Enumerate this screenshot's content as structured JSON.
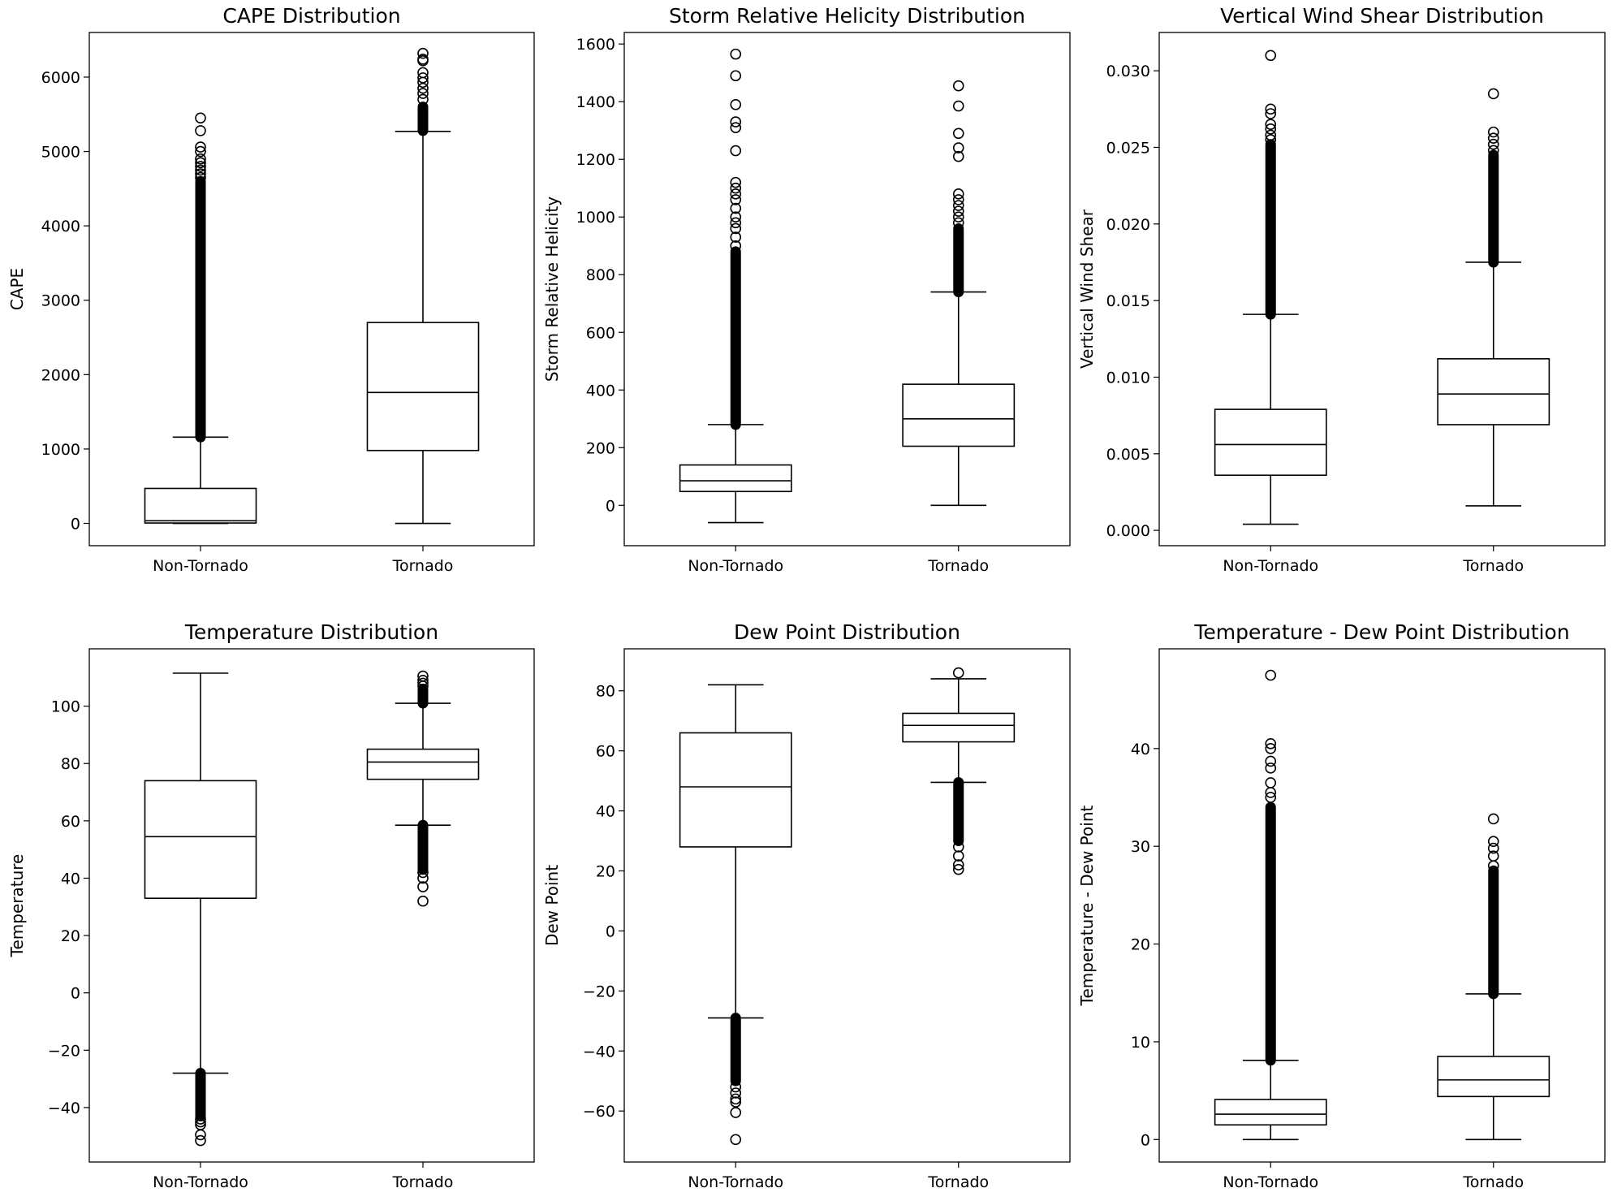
{
  "figure": {
    "background": "#ffffff",
    "line_color": "#000000"
  },
  "chart_data": [
    {
      "type": "boxplot",
      "title": "CAPE Distribution",
      "xlabel": "",
      "ylabel": "CAPE",
      "categories": [
        "Non-Tornado",
        "Tornado"
      ],
      "ylim": [
        -300,
        6600
      ],
      "yticks": [
        0,
        1000,
        2000,
        3000,
        4000,
        5000,
        6000
      ],
      "yticklabels": [
        "0",
        "1000",
        "2000",
        "3000",
        "4000",
        "5000",
        "6000"
      ],
      "boxes": [
        {
          "whislo": 0,
          "q1": 5,
          "med": 35,
          "q3": 470,
          "whishi": 1160,
          "outlier_band_low": [],
          "outlier_band_high": [
            1160,
            4600
          ],
          "fliers": [
            4650,
            4700,
            4750,
            4800,
            4850,
            4900,
            5000,
            5060,
            5280,
            5450
          ]
        },
        {
          "whislo": 0,
          "q1": 980,
          "med": 1760,
          "q3": 2700,
          "whishi": 5270,
          "outlier_band_low": [],
          "outlier_band_high": [
            5280,
            5600
          ],
          "fliers": [
            5700,
            5780,
            5850,
            5930,
            5990,
            6060,
            6220,
            6240,
            6320
          ]
        }
      ]
    },
    {
      "type": "boxplot",
      "title": "Storm Relative Helicity Distribution",
      "xlabel": "",
      "ylabel": "Storm Relative Helicity",
      "categories": [
        "Non-Tornado",
        "Tornado"
      ],
      "ylim": [
        -140,
        1640
      ],
      "yticks": [
        0,
        200,
        400,
        600,
        800,
        1000,
        1200,
        1400,
        1600
      ],
      "yticklabels": [
        "0",
        "200",
        "400",
        "600",
        "800",
        "1000",
        "1200",
        "1400",
        "1600"
      ],
      "boxes": [
        {
          "whislo": -60,
          "q1": 48,
          "med": 85,
          "q3": 140,
          "whishi": 280,
          "outlier_band_low": [],
          "outlier_band_high": [
            280,
            880
          ],
          "fliers": [
            900,
            930,
            960,
            980,
            1000,
            1030,
            1060,
            1080,
            1100,
            1120,
            1230,
            1310,
            1330,
            1390,
            1490,
            1565
          ]
        },
        {
          "whislo": 0,
          "q1": 205,
          "med": 300,
          "q3": 420,
          "whishi": 740,
          "outlier_band_low": [],
          "outlier_band_high": [
            740,
            960
          ],
          "fliers": [
            980,
            1000,
            1020,
            1040,
            1060,
            1080,
            1210,
            1240,
            1290,
            1385,
            1455
          ]
        }
      ]
    },
    {
      "type": "boxplot",
      "title": "Vertical Wind Shear Distribution",
      "xlabel": "",
      "ylabel": "Vertical Wind Shear",
      "categories": [
        "Non-Tornado",
        "Tornado"
      ],
      "ylim": [
        -0.001,
        0.0325
      ],
      "yticks": [
        0,
        0.005,
        0.01,
        0.015,
        0.02,
        0.025,
        0.03
      ],
      "yticklabels": [
        "0.000",
        "0.005",
        "0.010",
        "0.015",
        "0.020",
        "0.025",
        "0.030"
      ],
      "boxes": [
        {
          "whislo": 0.0004,
          "q1": 0.0036,
          "med": 0.0056,
          "q3": 0.0079,
          "whishi": 0.0141,
          "outlier_band_low": [],
          "outlier_band_high": [
            0.0141,
            0.0252
          ],
          "fliers": [
            0.0255,
            0.0258,
            0.0262,
            0.0265,
            0.0272,
            0.0275,
            0.031
          ]
        },
        {
          "whislo": 0.0016,
          "q1": 0.0069,
          "med": 0.0089,
          "q3": 0.0112,
          "whishi": 0.0175,
          "outlier_band_low": [],
          "outlier_band_high": [
            0.0175,
            0.0245
          ],
          "fliers": [
            0.0248,
            0.0252,
            0.0256,
            0.026,
            0.0285
          ]
        }
      ]
    },
    {
      "type": "boxplot",
      "title": "Temperature Distribution",
      "xlabel": "",
      "ylabel": "Temperature",
      "categories": [
        "Non-Tornado",
        "Tornado"
      ],
      "ylim": [
        -59,
        120
      ],
      "yticks": [
        -40,
        -20,
        0,
        20,
        40,
        60,
        80,
        100
      ],
      "yticklabels": [
        "−40",
        "−20",
        "0",
        "20",
        "40",
        "60",
        "80",
        "100"
      ],
      "boxes": [
        {
          "whislo": -28,
          "q1": 33,
          "med": 54.5,
          "q3": 74,
          "whishi": 111.5,
          "outlier_band_low": [
            -43,
            -28
          ],
          "outlier_band_high": [],
          "fliers": [
            -44,
            -45,
            -46,
            -49.5,
            -51.5
          ]
        },
        {
          "whislo": 58.5,
          "q1": 74.5,
          "med": 80.5,
          "q3": 85,
          "whishi": 101,
          "outlier_band_low": [
            43,
            58.5
          ],
          "outlier_band_high": [
            101,
            106
          ],
          "fliers": [
            42,
            40,
            37,
            32,
            107,
            108,
            109,
            110.5
          ]
        }
      ]
    },
    {
      "type": "boxplot",
      "title": "Dew Point Distribution",
      "xlabel": "",
      "ylabel": "Dew Point",
      "categories": [
        "Non-Tornado",
        "Tornado"
      ],
      "ylim": [
        -77,
        94
      ],
      "yticks": [
        -60,
        -40,
        -20,
        0,
        20,
        40,
        60,
        80
      ],
      "yticklabels": [
        "−60",
        "−40",
        "−20",
        "0",
        "20",
        "40",
        "60",
        "80"
      ],
      "boxes": [
        {
          "whislo": -29,
          "q1": 28,
          "med": 48,
          "q3": 66,
          "whishi": 82,
          "outlier_band_low": [
            -50,
            -29
          ],
          "outlier_band_high": [],
          "fliers": [
            -52,
            -54,
            -56,
            -57,
            -60.5,
            -69.5
          ]
        },
        {
          "whislo": 49.5,
          "q1": 63,
          "med": 68.5,
          "q3": 72.5,
          "whishi": 84,
          "outlier_band_low": [
            30,
            49.5
          ],
          "outlier_band_high": [],
          "fliers": [
            28,
            25,
            22,
            20.5,
            86
          ]
        }
      ]
    },
    {
      "type": "boxplot",
      "title": "Temperature - Dew Point Distribution",
      "xlabel": "",
      "ylabel": "Temperature - Dew Point",
      "categories": [
        "Non-Tornado",
        "Tornado"
      ],
      "ylim": [
        -2.3,
        50.2
      ],
      "yticks": [
        0,
        10,
        20,
        30,
        40
      ],
      "yticklabels": [
        "0",
        "10",
        "20",
        "30",
        "40"
      ],
      "boxes": [
        {
          "whislo": 0,
          "q1": 1.5,
          "med": 2.6,
          "q3": 4.1,
          "whishi": 8.1,
          "outlier_band_low": [],
          "outlier_band_high": [
            8.1,
            34
          ],
          "fliers": [
            35,
            35.5,
            36.5,
            38,
            38.7,
            40,
            40.5,
            47.5
          ]
        },
        {
          "whislo": 0,
          "q1": 4.4,
          "med": 6.1,
          "q3": 8.5,
          "whishi": 14.9,
          "outlier_band_low": [],
          "outlier_band_high": [
            14.9,
            27.5
          ],
          "fliers": [
            28,
            29,
            29.8,
            30.5,
            32.8
          ]
        }
      ]
    }
  ]
}
